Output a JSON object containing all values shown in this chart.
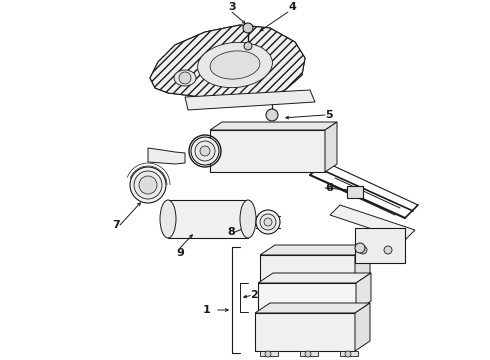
{
  "background_color": "#ffffff",
  "line_color": "#1a1a1a",
  "fig_width": 4.9,
  "fig_height": 3.6,
  "dpi": 100,
  "label_fontsize": 8,
  "arrow_fontsize": 7
}
